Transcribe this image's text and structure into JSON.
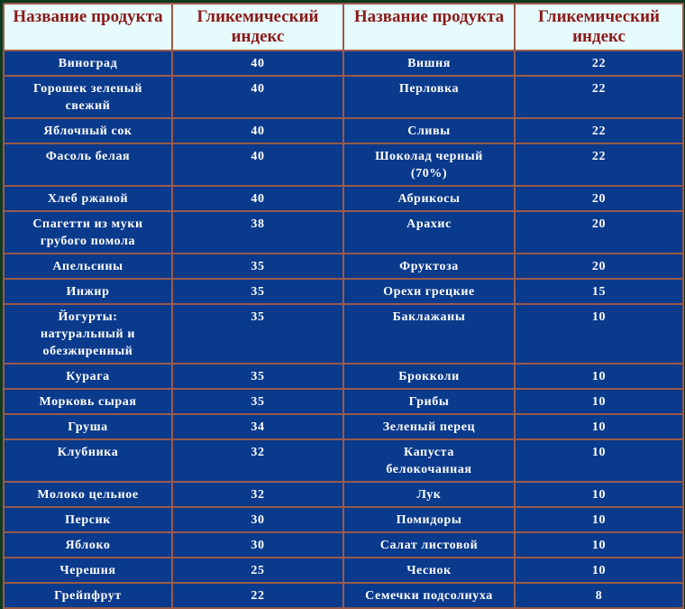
{
  "table": {
    "header": [
      "Название продукта",
      "Гликемический индекс",
      "Название продукта",
      "Гликемический индекс"
    ],
    "rows": [
      [
        "Виноград",
        40,
        "Вишня",
        22
      ],
      [
        "Горошек зеленый свежий",
        40,
        "Перловка",
        22
      ],
      [
        "Яблочный сок",
        40,
        "Сливы",
        22
      ],
      [
        "Фасоль белая",
        40,
        "Шоколад черный (70%)",
        22
      ],
      [
        "Хлеб ржаной",
        40,
        "Абрикосы",
        20
      ],
      [
        "Спагетти из муки грубого помола",
        38,
        "Арахис",
        20
      ],
      [
        "Апельсины",
        35,
        "Фруктоза",
        20
      ],
      [
        "Инжир",
        35,
        "Орехи грецкие",
        15
      ],
      [
        "Йогурты: натуральный и обезжиренный",
        35,
        "Баклажаны",
        10
      ],
      [
        "Курага",
        35,
        "Брокколи",
        10
      ],
      [
        "Морковь сырая",
        35,
        "Грибы",
        10
      ],
      [
        "Груша",
        34,
        "Зеленый перец",
        10
      ],
      [
        "Клубника",
        32,
        "Капуста белокочанная",
        10
      ],
      [
        "Молоко цельное",
        32,
        "Лук",
        10
      ],
      [
        "Персик",
        30,
        "Помидоры",
        10
      ],
      [
        "Яблоко",
        30,
        "Салат листовой",
        10
      ],
      [
        "Черешня",
        25,
        "Чеснок",
        10
      ],
      [
        "Грейпфрут",
        22,
        "Семечки подсолнуха",
        8
      ]
    ]
  }
}
